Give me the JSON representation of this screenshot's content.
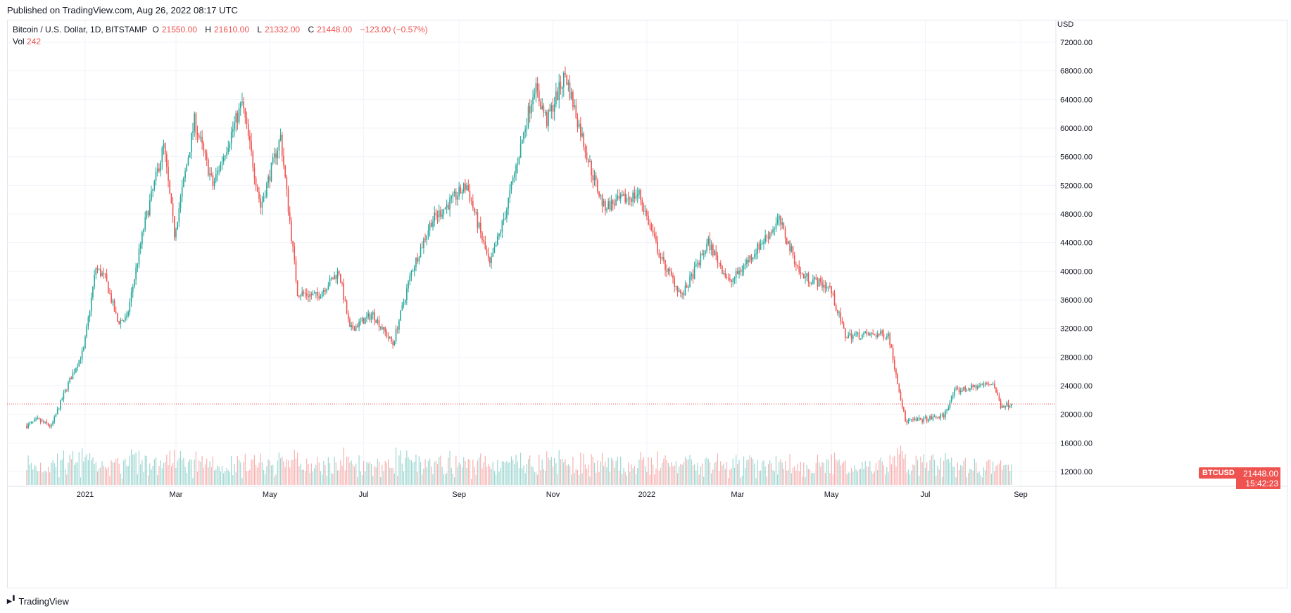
{
  "header": {
    "published": "Published on TradingView.com, Aug 26, 2022 08:17 UTC"
  },
  "legend": {
    "symbol": "Bitcoin / U.S. Dollar, 1D, BITSTAMP",
    "o_label": "O",
    "o_value": "21550.00",
    "h_label": "H",
    "h_value": "21610.00",
    "l_label": "L",
    "l_value": "21332.00",
    "c_label": "C",
    "c_value": "21448.00",
    "change": "−123.00 (−0.57%)",
    "vol_label": "Vol",
    "vol_value": "242"
  },
  "price_scale": {
    "currency": "USD",
    "ticks": [
      "72000.00",
      "68000.00",
      "64000.00",
      "60000.00",
      "56000.00",
      "52000.00",
      "48000.00",
      "44000.00",
      "40000.00",
      "36000.00",
      "32000.00",
      "28000.00",
      "24000.00",
      "20000.00",
      "16000.00",
      "12000.00"
    ]
  },
  "last_price_tag": {
    "symbol": "BTCUSD",
    "price": "21448.00",
    "countdown": "15:42:23"
  },
  "footer": {
    "brand": "TradingView"
  },
  "colors": {
    "up": "#26a69a",
    "down": "#ef5350",
    "grid": "#f0f3fa",
    "text": "#131722"
  },
  "chart_data": {
    "type": "candlestick",
    "symbol": "BTCUSD",
    "interval": "1D",
    "currency": "USD",
    "x_ticks": [
      "2021",
      "Mar",
      "May",
      "Jul",
      "Sep",
      "Nov",
      "2022",
      "Mar",
      "May",
      "Jul",
      "Sep"
    ],
    "x_tick_dates": [
      "2021-01-01",
      "2021-03-01",
      "2021-05-01",
      "2021-07-01",
      "2021-09-01",
      "2021-11-01",
      "2022-01-01",
      "2022-03-01",
      "2022-05-01",
      "2022-07-01",
      "2022-09-01"
    ],
    "ylim": [
      10000,
      74000
    ],
    "last_close": 21448,
    "last_volume": 242,
    "series": [
      {
        "name": "BTCUSD",
        "date": "2020-11-24",
        "close": 18400
      },
      {
        "date": "2020-12-01",
        "close": 19200
      },
      {
        "date": "2020-12-10",
        "close": 18300
      },
      {
        "date": "2020-12-20",
        "close": 23800
      },
      {
        "date": "2020-12-31",
        "close": 29000
      },
      {
        "date": "2021-01-08",
        "close": 40500
      },
      {
        "date": "2021-01-14",
        "close": 39000
      },
      {
        "date": "2021-01-22",
        "close": 33000
      },
      {
        "date": "2021-01-28",
        "close": 33300
      },
      {
        "date": "2021-02-08",
        "close": 46000
      },
      {
        "date": "2021-02-21",
        "close": 57500
      },
      {
        "date": "2021-02-28",
        "close": 45200
      },
      {
        "date": "2021-03-13",
        "close": 61000
      },
      {
        "date": "2021-03-25",
        "close": 52000
      },
      {
        "date": "2021-04-13",
        "close": 63500
      },
      {
        "date": "2021-04-25",
        "close": 49000
      },
      {
        "date": "2021-05-08",
        "close": 58800
      },
      {
        "date": "2021-05-19",
        "close": 37000
      },
      {
        "date": "2021-06-01",
        "close": 36500
      },
      {
        "date": "2021-06-15",
        "close": 40000
      },
      {
        "date": "2021-06-22",
        "close": 31800
      },
      {
        "date": "2021-07-07",
        "close": 34000
      },
      {
        "date": "2021-07-20",
        "close": 29800
      },
      {
        "date": "2021-08-01",
        "close": 39900
      },
      {
        "date": "2021-08-14",
        "close": 47000
      },
      {
        "date": "2021-09-06",
        "close": 52000
      },
      {
        "date": "2021-09-21",
        "close": 40700
      },
      {
        "date": "2021-10-01",
        "close": 48000
      },
      {
        "date": "2021-10-20",
        "close": 65900
      },
      {
        "date": "2021-10-28",
        "close": 61000
      },
      {
        "date": "2021-11-09",
        "close": 67500
      },
      {
        "date": "2021-11-26",
        "close": 54000
      },
      {
        "date": "2021-12-04",
        "close": 49000
      },
      {
        "date": "2021-12-27",
        "close": 50800
      },
      {
        "date": "2022-01-10",
        "close": 41800
      },
      {
        "date": "2022-01-24",
        "close": 36500
      },
      {
        "date": "2022-02-10",
        "close": 44000
      },
      {
        "date": "2022-02-24",
        "close": 38300
      },
      {
        "date": "2022-03-28",
        "close": 47100
      },
      {
        "date": "2022-04-11",
        "close": 39500
      },
      {
        "date": "2022-04-30",
        "close": 37700
      },
      {
        "date": "2022-05-10",
        "close": 31000
      },
      {
        "date": "2022-06-07",
        "close": 31200
      },
      {
        "date": "2022-06-18",
        "close": 19000
      },
      {
        "date": "2022-07-01",
        "close": 19300
      },
      {
        "date": "2022-07-13",
        "close": 19800
      },
      {
        "date": "2022-07-20",
        "close": 23200
      },
      {
        "date": "2022-08-14",
        "close": 24400
      },
      {
        "date": "2022-08-19",
        "close": 21200
      },
      {
        "date": "2022-08-26",
        "close": 21448
      }
    ]
  }
}
